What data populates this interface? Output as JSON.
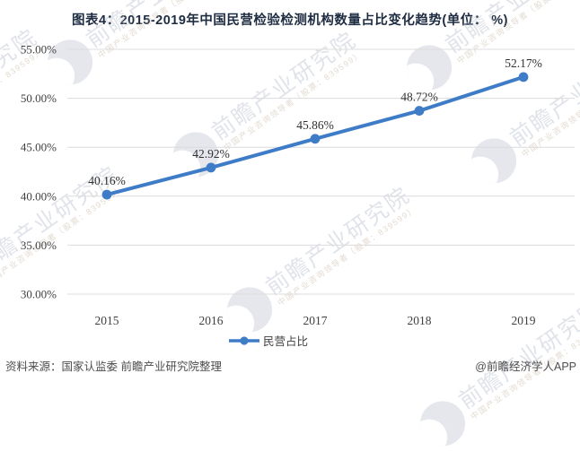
{
  "title": "图表4：2015-2019年中国民营检验检测机构数量占比变化趋势(单位： %)",
  "chart_data": {
    "type": "line",
    "categories": [
      "2015",
      "2016",
      "2017",
      "2018",
      "2019"
    ],
    "series": [
      {
        "name": "民营占比",
        "values": [
          40.16,
          42.92,
          45.86,
          48.72,
          52.17
        ]
      }
    ],
    "data_labels": [
      "40.16%",
      "42.92%",
      "45.86%",
      "48.72%",
      "52.17%"
    ],
    "ylim": [
      30,
      55
    ],
    "ytick_step": 5,
    "ytick_labels": [
      "30.00%",
      "35.00%",
      "40.00%",
      "45.00%",
      "50.00%",
      "55.00%"
    ],
    "grid": true,
    "legend_position": "bottom",
    "title": "图表4：2015-2019年中国民营检验检测机构数量占比变化趋势(单位： %)",
    "xlabel": "",
    "ylabel": ""
  },
  "legend": {
    "label": "民营占比"
  },
  "footer": {
    "source": "资料来源：国家认监委 前瞻产业研究院整理",
    "credit": "@前瞻经济学人APP"
  },
  "watermark": {
    "logo": "qianzhan-logo",
    "text": "前瞻产业研究院",
    "subtext": "中国产业咨询领导者（股票：839599）"
  },
  "colors": {
    "line": "#3e7cc8",
    "grid": "#dcdcdc",
    "title": "#1e2c42",
    "axis_text": "#404040",
    "data_label_text": "#303030",
    "footer_text": "#4d4d4d"
  }
}
